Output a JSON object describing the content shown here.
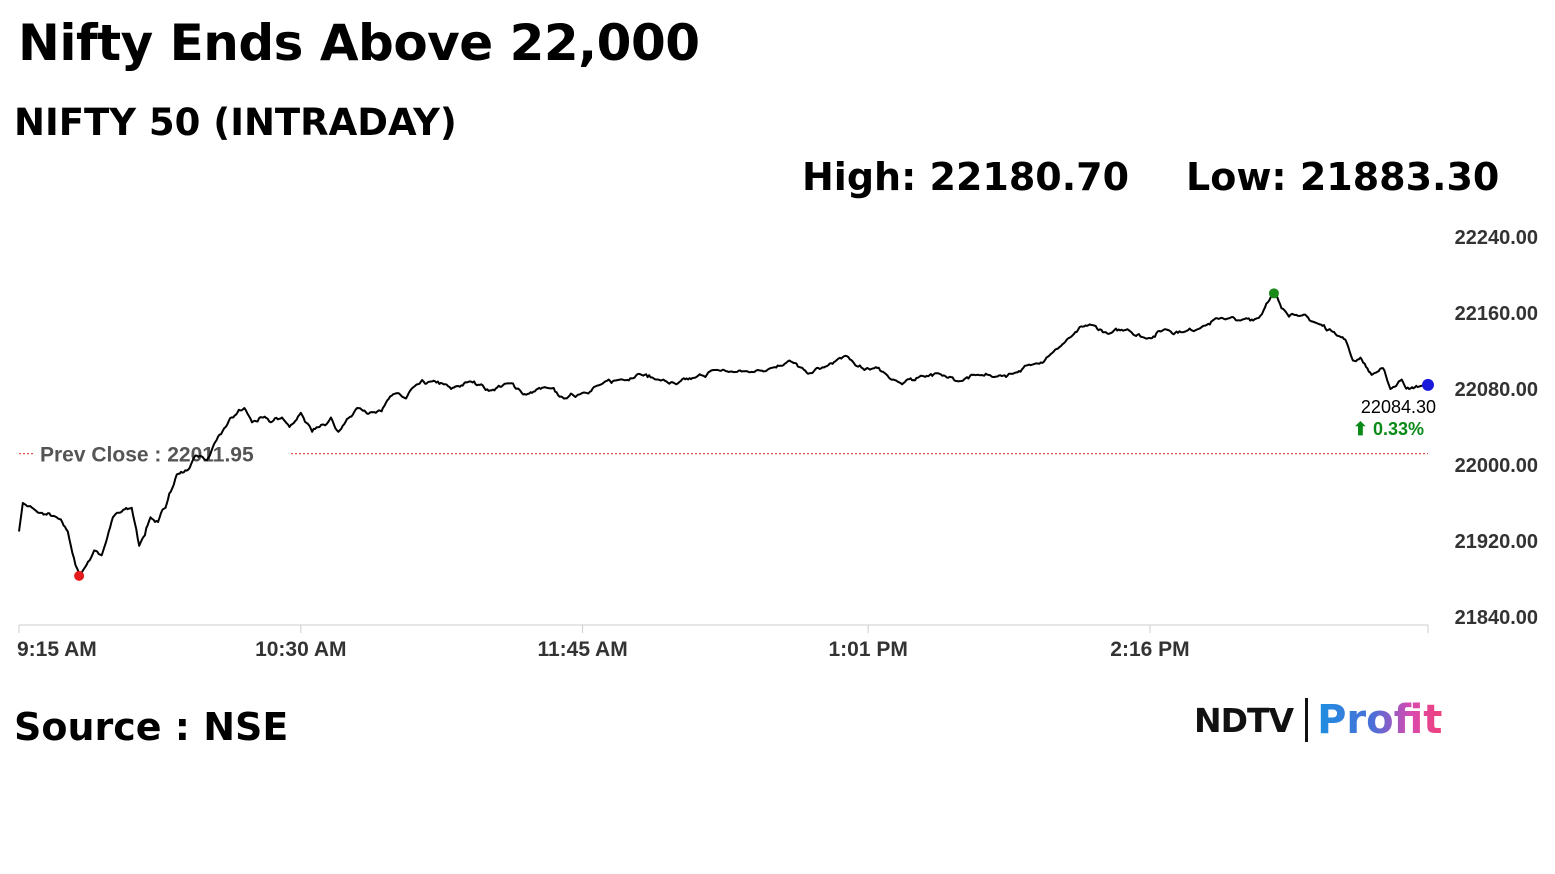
{
  "headline": "Nifty Ends Above 22,000",
  "subtitle": "NIFTY 50 (INTRADAY)",
  "stats": {
    "high": "High: 22180.70",
    "low": "Low: 21883.30"
  },
  "source": "Source : NSE",
  "logo": {
    "brand": "NDTV",
    "product": "Profit"
  },
  "colors": {
    "line": "#000000",
    "high_marker": "#1a8a1a",
    "low_marker": "#e31b1b",
    "last_marker": "#1a1adb",
    "prev_close_line": "#d9534f",
    "change_positive": "#0a8a18"
  },
  "chart_data": {
    "type": "line",
    "title": "NIFTY 50 (INTRADAY)",
    "xlabel": "",
    "ylabel": "",
    "ylim": [
      21840,
      22240
    ],
    "y_ticks": [
      "22240.00",
      "22160.00",
      "22080.00",
      "22000.00",
      "21920.00",
      "21840.00"
    ],
    "x_tick_labels": [
      "9:15 AM",
      "10:30 AM",
      "11:45 AM",
      "1:01 PM",
      "2:16 PM"
    ],
    "x_tick_minutes": [
      555,
      630,
      705,
      781,
      856
    ],
    "x_range_minutes": [
      555,
      930
    ],
    "prev_close": {
      "label": "Prev Close : 22011.95",
      "value": 22011.95
    },
    "last": {
      "value_label": "22084.30",
      "change_label": "⬆ 0.33%",
      "value": 22084.3
    },
    "high": {
      "time": "14:49",
      "value": 22180.7
    },
    "low": {
      "time": "9:31",
      "value": 21883.3
    },
    "series": [
      {
        "x": [
          "9:15",
          "9:16",
          "9:20",
          "9:25",
          "9:28",
          "9:30",
          "9:31",
          "9:33",
          "9:35",
          "9:37",
          "9:40",
          "9:42",
          "9:45",
          "9:47",
          "9:50",
          "9:52",
          "9:54",
          "9:55",
          "9:57",
          "10:00",
          "10:02",
          "10:05",
          "10:08",
          "10:10",
          "10:12",
          "10:15",
          "10:17",
          "10:20",
          "10:22",
          "10:25",
          "10:27",
          "10:30",
          "10:33",
          "10:35",
          "10:38",
          "10:40",
          "10:45",
          "10:50",
          "10:53",
          "10:55",
          "10:58",
          "11:00",
          "11:05",
          "11:08",
          "11:10",
          "11:15",
          "11:18",
          "11:20",
          "11:25",
          "11:28",
          "11:30",
          "11:35",
          "11:40",
          "11:45",
          "11:50",
          "11:55",
          "12:00",
          "12:05",
          "12:10",
          "12:15",
          "12:20",
          "12:25",
          "12:30",
          "12:35",
          "12:40",
          "12:45",
          "12:50",
          "12:55",
          "12:58",
          "13:00",
          "13:03",
          "13:05",
          "13:10",
          "13:15",
          "13:20",
          "13:25",
          "13:30",
          "13:35",
          "13:40",
          "13:45",
          "13:50",
          "13:55",
          "14:00",
          "14:05",
          "14:10",
          "14:15",
          "14:20",
          "14:25",
          "14:30",
          "14:35",
          "14:40",
          "14:45",
          "14:47",
          "14:49",
          "14:51",
          "14:55",
          "15:00",
          "15:05",
          "15:08",
          "15:10",
          "15:12",
          "15:15",
          "15:18",
          "15:20",
          "15:23",
          "15:25",
          "15:28",
          "15:30"
        ],
        "y": [
          21930,
          21960,
          21950,
          21945,
          21930,
          21895,
          21883.3,
          21895,
          21910,
          21905,
          21945,
          21950,
          21955,
          21915,
          21945,
          21940,
          21955,
          21970,
          21990,
          21995,
          22010,
          22005,
          22030,
          22040,
          22050,
          22060,
          22045,
          22050,
          22045,
          22050,
          22040,
          22055,
          22035,
          22040,
          22050,
          22035,
          22060,
          22055,
          22068,
          22075,
          22070,
          22082,
          22088,
          22085,
          22080,
          22088,
          22085,
          22078,
          22086,
          22080,
          22074,
          22082,
          22070,
          22076,
          22085,
          22090,
          22096,
          22090,
          22085,
          22092,
          22100,
          22098,
          22098,
          22102,
          22110,
          22096,
          22104,
          22115,
          22104,
          22100,
          22103,
          22098,
          22085,
          22094,
          22096,
          22088,
          22095,
          22093,
          22097,
          22106,
          22118,
          22135,
          22148,
          22138,
          22143,
          22133,
          22143,
          22140,
          22146,
          22155,
          22152,
          22155,
          22170,
          22180.7,
          22165,
          22158,
          22150,
          22140,
          22132,
          22110,
          22113,
          22095,
          22102,
          22080,
          22090,
          22080,
          22083,
          22084.3
        ]
      }
    ]
  }
}
